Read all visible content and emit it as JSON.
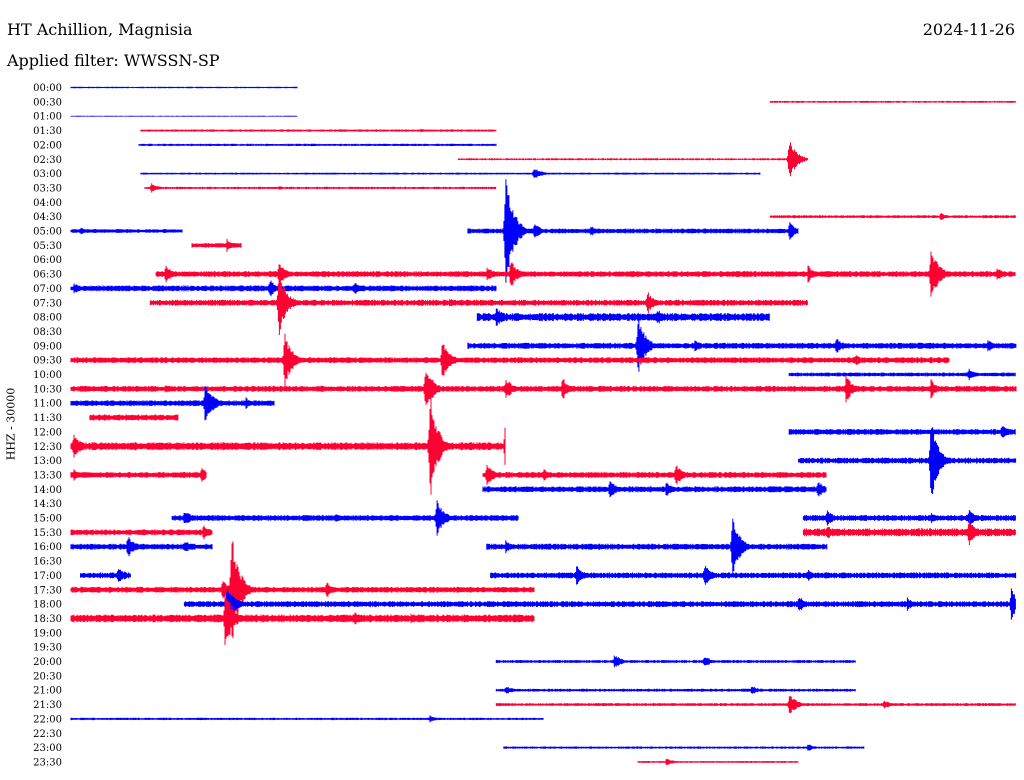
{
  "header": {
    "station": "HT Achillion, Magnisia",
    "date": "2024-11-26",
    "filter": "Applied filter: WWSSN-SP"
  },
  "chart_data": {
    "type": "line",
    "title": "HT Achillion, Magnisia",
    "subtitle": "Applied filter: WWSSN-SP",
    "ylabel": "HHZ - 30000",
    "grid": false,
    "colors": [
      "#0000ff",
      "#ff0033"
    ],
    "rows": [
      {
        "label": "00:00",
        "segments": [
          {
            "x": [
              0.0,
              0.24
            ],
            "amp": 0.8,
            "events": []
          }
        ]
      },
      {
        "label": "00:30",
        "segments": [
          {
            "x": [
              0.74,
              1.0
            ],
            "amp": 1.0,
            "events": []
          }
        ]
      },
      {
        "label": "01:00",
        "segments": [
          {
            "x": [
              0.0,
              0.24
            ],
            "amp": 0.5,
            "events": []
          }
        ]
      },
      {
        "label": "01:30",
        "segments": [
          {
            "x": [
              0.074,
              0.45
            ],
            "amp": 1.2,
            "events": [
              [
                0.37,
                2
              ]
            ]
          }
        ]
      },
      {
        "label": "02:00",
        "segments": [
          {
            "x": [
              0.072,
              0.45
            ],
            "amp": 1.2,
            "events": []
          }
        ]
      },
      {
        "label": "02:30",
        "segments": [
          {
            "x": [
              0.41,
              0.78
            ],
            "amp": 1.0,
            "events": [
              [
                0.76,
                22
              ]
            ]
          }
        ]
      },
      {
        "label": "03:00",
        "segments": [
          {
            "x": [
              0.074,
              0.73
            ],
            "amp": 1.0,
            "events": [
              [
                0.49,
                7
              ]
            ]
          }
        ]
      },
      {
        "label": "03:30",
        "segments": [
          {
            "x": [
              0.078,
              0.45
            ],
            "amp": 1.2,
            "events": [
              [
                0.085,
                5
              ],
              [
                0.22,
                2
              ]
            ]
          }
        ]
      },
      {
        "label": "04:00",
        "segments": []
      },
      {
        "label": "04:30",
        "segments": [
          {
            "x": [
              0.74,
              1.0
            ],
            "amp": 1.5,
            "events": [
              [
                0.92,
                4
              ]
            ]
          }
        ]
      },
      {
        "label": "05:00",
        "segments": [
          {
            "x": [
              0.0,
              0.118
            ],
            "amp": 2.0,
            "events": [
              [
                0.01,
                4
              ]
            ]
          },
          {
            "x": [
              0.42,
              0.77
            ],
            "amp": 2.5,
            "events": [
              [
                0.46,
                68
              ],
              [
                0.49,
                9
              ],
              [
                0.55,
                6
              ],
              [
                0.76,
                10
              ]
            ]
          }
        ]
      },
      {
        "label": "05:30",
        "segments": [
          {
            "x": [
              0.128,
              0.18
            ],
            "amp": 2.5,
            "events": [
              [
                0.165,
                7
              ]
            ]
          }
        ]
      },
      {
        "label": "06:00",
        "segments": []
      },
      {
        "label": "06:30",
        "segments": [
          {
            "x": [
              0.09,
              1.0
            ],
            "amp": 3.0,
            "events": [
              [
                0.1,
                9
              ],
              [
                0.22,
                12
              ],
              [
                0.44,
                8
              ],
              [
                0.465,
                15
              ],
              [
                0.78,
                9
              ],
              [
                0.91,
                30
              ],
              [
                0.98,
                7
              ]
            ]
          }
        ]
      },
      {
        "label": "07:00",
        "segments": [
          {
            "x": [
              0.0,
              0.45
            ],
            "amp": 3.0,
            "events": [
              [
                0.003,
                6
              ],
              [
                0.21,
                10
              ],
              [
                0.3,
                7
              ]
            ]
          }
        ]
      },
      {
        "label": "07:30",
        "segments": [
          {
            "x": [
              0.084,
              0.78
            ],
            "amp": 3.0,
            "events": [
              [
                0.22,
                36
              ],
              [
                0.61,
                12
              ],
              [
                0.4,
                5
              ]
            ]
          }
        ]
      },
      {
        "label": "08:00",
        "segments": [
          {
            "x": [
              0.43,
              0.74
            ],
            "amp": 4.0,
            "events": [
              [
                0.45,
                12
              ],
              [
                0.6,
                5
              ],
              [
                0.62,
                9
              ]
            ]
          }
        ]
      },
      {
        "label": "08:30",
        "segments": []
      },
      {
        "label": "09:00",
        "segments": [
          {
            "x": [
              0.42,
              1.0
            ],
            "amp": 3.0,
            "events": [
              [
                0.6,
                32
              ],
              [
                0.66,
                7
              ],
              [
                0.81,
                9
              ],
              [
                0.97,
                7
              ]
            ]
          }
        ]
      },
      {
        "label": "09:30",
        "segments": [
          {
            "x": [
              0.0,
              0.93
            ],
            "amp": 3.0,
            "events": [
              [
                0.226,
                30
              ],
              [
                0.393,
                22
              ],
              [
                0.83,
                7
              ]
            ]
          }
        ]
      },
      {
        "label": "10:00",
        "segments": [
          {
            "x": [
              0.76,
              1.0
            ],
            "amp": 2.0,
            "events": [
              [
                0.95,
                7
              ]
            ]
          }
        ]
      },
      {
        "label": "10:30",
        "segments": [
          {
            "x": [
              0.0,
              1.0
            ],
            "amp": 3.0,
            "events": [
              [
                0.1,
                5
              ],
              [
                0.375,
                28
              ],
              [
                0.46,
                12
              ],
              [
                0.52,
                12
              ],
              [
                0.82,
                14
              ],
              [
                0.91,
                10
              ]
            ]
          }
        ]
      },
      {
        "label": "11:00",
        "segments": [
          {
            "x": [
              0.0,
              0.215
            ],
            "amp": 3.0,
            "events": [
              [
                0.142,
                24
              ],
              [
                0.185,
                6
              ]
            ]
          }
        ]
      },
      {
        "label": "11:30",
        "segments": [
          {
            "x": [
              0.02,
              0.114
            ],
            "amp": 3.0,
            "events": [
              [
                0.035,
                4
              ]
            ]
          }
        ]
      },
      {
        "label": "12:00",
        "segments": [
          {
            "x": [
              0.76,
              1.0
            ],
            "amp": 3.0,
            "events": [
              [
                0.985,
                8
              ]
            ]
          }
        ]
      },
      {
        "label": "12:30",
        "segments": [
          {
            "x": [
              0.0,
              0.46
            ],
            "amp": 4.0,
            "events": [
              [
                0.003,
                14
              ],
              [
                0.38,
                58
              ],
              [
                0.46,
                44
              ]
            ]
          }
        ]
      },
      {
        "label": "13:00",
        "segments": [
          {
            "x": [
              0.77,
              1.0
            ],
            "amp": 3.0,
            "events": [
              [
                0.91,
                44
              ]
            ]
          }
        ]
      },
      {
        "label": "13:30",
        "segments": [
          {
            "x": [
              0.0,
              0.143
            ],
            "amp": 3.0,
            "events": [
              [
                0.003,
                6
              ],
              [
                0.138,
                9
              ]
            ]
          },
          {
            "x": [
              0.436,
              0.8
            ],
            "amp": 3.0,
            "events": [
              [
                0.44,
                12
              ],
              [
                0.64,
                12
              ],
              [
                0.5,
                7
              ]
            ]
          }
        ]
      },
      {
        "label": "14:00",
        "segments": [
          {
            "x": [
              0.436,
              0.8
            ],
            "amp": 3.0,
            "events": [
              [
                0.57,
                10
              ],
              [
                0.63,
                8
              ],
              [
                0.79,
                10
              ]
            ]
          }
        ]
      },
      {
        "label": "14:30",
        "segments": []
      },
      {
        "label": "15:00",
        "segments": [
          {
            "x": [
              0.107,
              0.474
            ],
            "amp": 3.0,
            "events": [
              [
                0.12,
                9
              ],
              [
                0.387,
                20
              ],
              [
                0.28,
                5
              ]
            ]
          },
          {
            "x": [
              0.775,
              1.0
            ],
            "amp": 3.0,
            "events": [
              [
                0.8,
                9
              ],
              [
                0.95,
                9
              ],
              [
                0.91,
                6
              ]
            ]
          }
        ]
      },
      {
        "label": "15:30",
        "segments": [
          {
            "x": [
              0.0,
              0.15
            ],
            "amp": 3.0,
            "events": [
              [
                0.14,
                8
              ]
            ]
          },
          {
            "x": [
              0.775,
              1.0
            ],
            "amp": 4.0,
            "events": [
              [
                0.8,
                8
              ],
              [
                0.95,
                16
              ]
            ]
          }
        ]
      },
      {
        "label": "16:00",
        "segments": [
          {
            "x": [
              0.0,
              0.15
            ],
            "amp": 3.0,
            "events": [
              [
                0.06,
                12
              ],
              [
                0.12,
                7
              ]
            ]
          },
          {
            "x": [
              0.44,
              0.8
            ],
            "amp": 3.0,
            "events": [
              [
                0.46,
                7
              ],
              [
                0.7,
                36
              ]
            ]
          }
        ]
      },
      {
        "label": "16:30",
        "segments": []
      },
      {
        "label": "17:00",
        "segments": [
          {
            "x": [
              0.01,
              0.063
            ],
            "amp": 3.0,
            "events": [
              [
                0.05,
                10
              ]
            ]
          },
          {
            "x": [
              0.444,
              1.0
            ],
            "amp": 3.0,
            "events": [
              [
                0.535,
                10
              ],
              [
                0.67,
                12
              ],
              [
                0.78,
                7
              ]
            ]
          }
        ]
      },
      {
        "label": "17:30",
        "segments": [
          {
            "x": [
              0.0,
              0.49
            ],
            "amp": 3.0,
            "events": [
              [
                0.17,
                64
              ],
              [
                0.27,
                9
              ],
              [
                0.16,
                12
              ]
            ]
          }
        ]
      },
      {
        "label": "18:00",
        "segments": [
          {
            "x": [
              0.12,
              1.0
            ],
            "amp": 3.0,
            "events": [
              [
                0.165,
                24
              ],
              [
                0.77,
                9
              ],
              [
                0.885,
                7
              ],
              [
                0.995,
                16
              ]
            ]
          }
        ]
      },
      {
        "label": "18:30",
        "segments": [
          {
            "x": [
              0.0,
              0.49
            ],
            "amp": 4.0,
            "events": [
              [
                0.163,
                34
              ],
              [
                0.3,
                8
              ],
              [
                0.36,
                6
              ]
            ]
          }
        ]
      },
      {
        "label": "19:00",
        "segments": []
      },
      {
        "label": "19:30",
        "segments": []
      },
      {
        "label": "20:00",
        "segments": [
          {
            "x": [
              0.45,
              0.83
            ],
            "amp": 1.5,
            "events": [
              [
                0.575,
                8
              ],
              [
                0.67,
                6
              ]
            ]
          }
        ]
      },
      {
        "label": "20:30",
        "segments": []
      },
      {
        "label": "21:00",
        "segments": [
          {
            "x": [
              0.45,
              0.83
            ],
            "amp": 1.5,
            "events": [
              [
                0.46,
                5
              ],
              [
                0.72,
                5
              ]
            ]
          }
        ]
      },
      {
        "label": "21:30",
        "segments": [
          {
            "x": [
              0.45,
              1.0
            ],
            "amp": 1.5,
            "events": [
              [
                0.76,
                12
              ],
              [
                0.86,
                5
              ]
            ]
          }
        ]
      },
      {
        "label": "22:00",
        "segments": [
          {
            "x": [
              0.0,
              0.5
            ],
            "amp": 1.2,
            "events": [
              [
                0.38,
                4
              ]
            ]
          }
        ]
      },
      {
        "label": "22:30",
        "segments": []
      },
      {
        "label": "23:00",
        "segments": [
          {
            "x": [
              0.458,
              0.84
            ],
            "amp": 1.2,
            "events": [
              [
                0.78,
                4
              ]
            ]
          }
        ]
      },
      {
        "label": "23:30",
        "segments": [
          {
            "x": [
              0.6,
              0.77
            ],
            "amp": 1.0,
            "events": [
              [
                0.63,
                4
              ]
            ]
          }
        ]
      }
    ]
  }
}
